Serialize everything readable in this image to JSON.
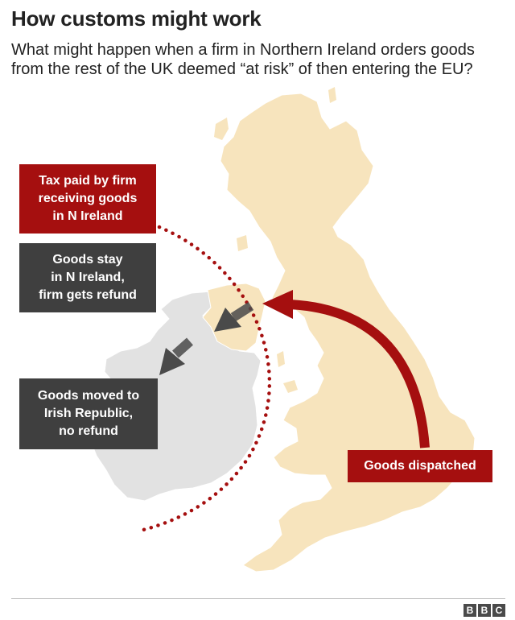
{
  "header": {
    "title": "How customs might work",
    "subtitle": "What might happen when a firm in Northern Ireland orders goods from the rest of the UK deemed “at risk” of then entering the EU?"
  },
  "labels": {
    "tax_paid": "Tax paid by firm\nreceiving goods\nin N Ireland",
    "goods_stay": "Goods stay\nin N Ireland,\nfirm gets refund",
    "goods_moved": "Goods moved to\nIrish Republic,\nno refund",
    "goods_dispatched": "Goods dispatched"
  },
  "footer": {
    "logo": [
      "B",
      "B",
      "C"
    ]
  },
  "colors": {
    "gb_land": "#f7e4bd",
    "ireland_land": "#e2e2e2",
    "accent_red": "#a50f0f",
    "dark_box": "#3f3f3f",
    "arrow_grey": "#4a4a4a"
  }
}
